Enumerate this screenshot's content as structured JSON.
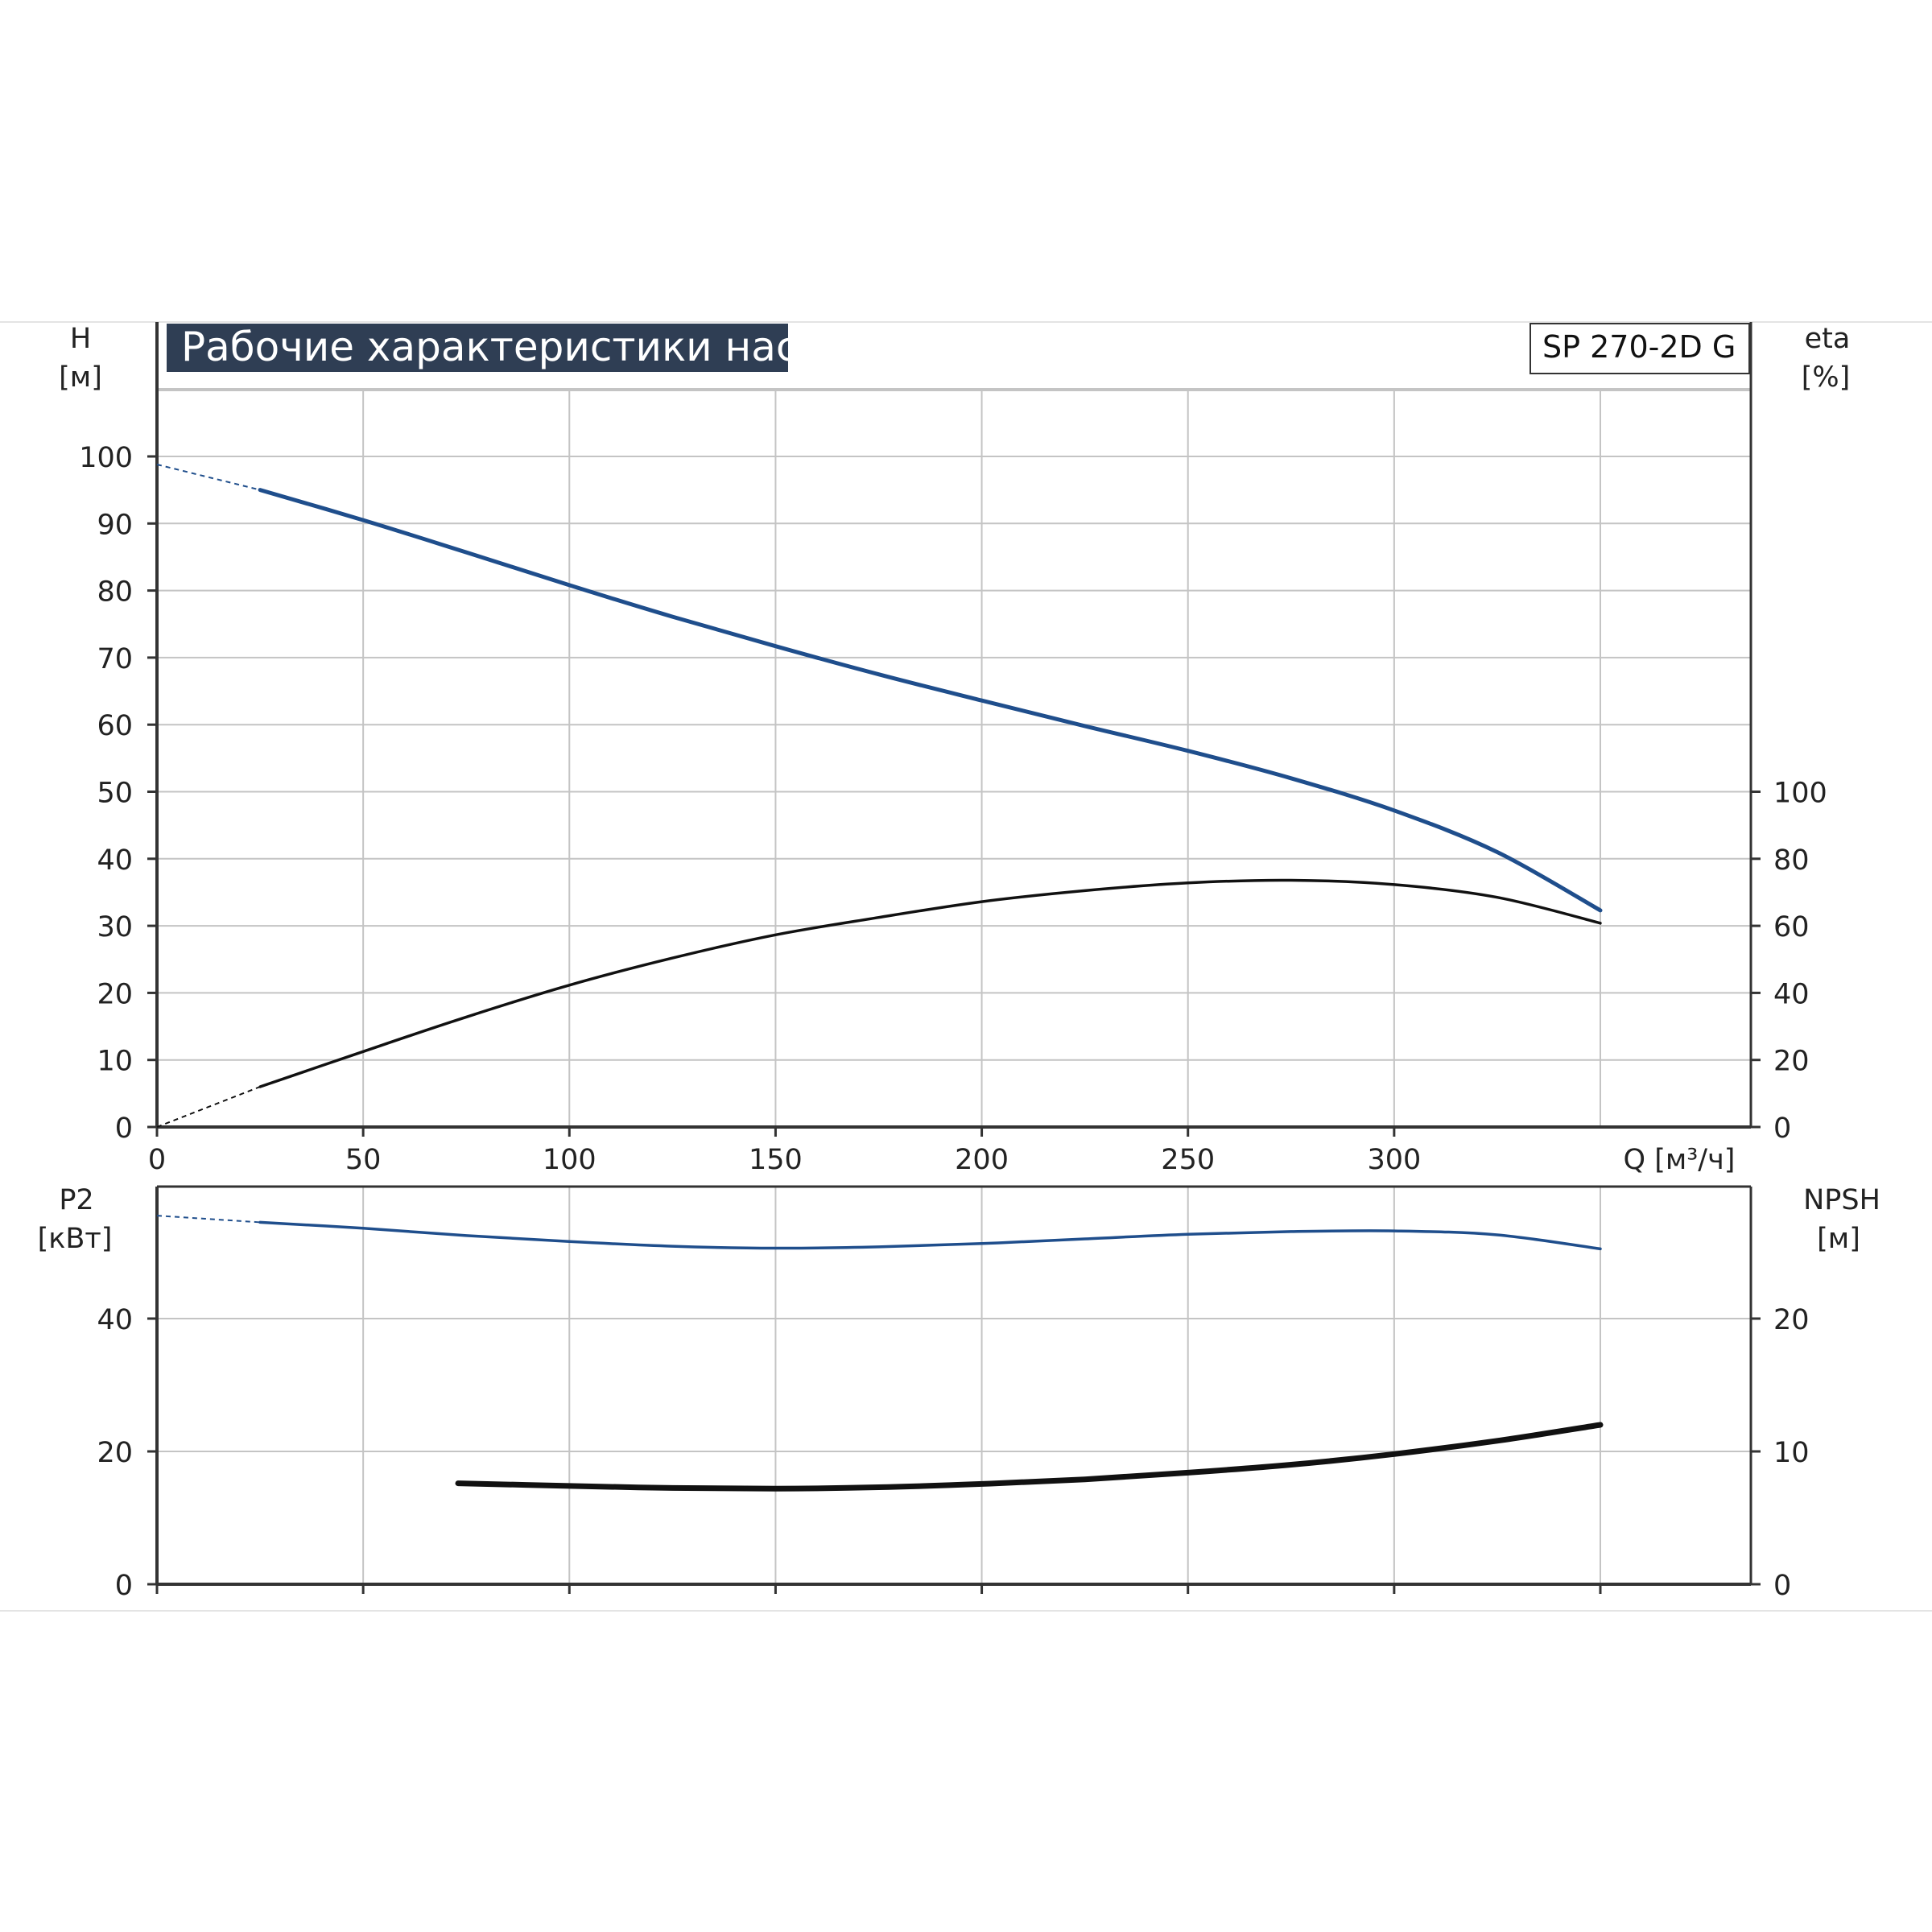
{
  "colors": {
    "blue_curve": "#1f4e8c",
    "black_curve": "#111111",
    "grid": "#c4c4c4",
    "axis": "#333333",
    "title_bg": "#2f3e54",
    "title_fg": "#ffffff"
  },
  "chart_data": [
    {
      "type": "line",
      "title": "Рабочие характеристики насоса",
      "model": "SP 270-2D G",
      "xlabel": "Q [м³/ч]",
      "xlim": [
        0,
        385
      ],
      "xticks": [
        0,
        50,
        100,
        150,
        200,
        250,
        300
      ],
      "xtick_labels": [
        "0",
        "50",
        "100",
        "150",
        "200",
        "250",
        "300"
      ],
      "grid": true,
      "y_left": {
        "label_line1": "H",
        "label_line2": "[м]",
        "lim": [
          0,
          120
        ],
        "ticks": [
          0,
          10,
          20,
          30,
          40,
          50,
          60,
          70,
          80,
          90,
          100
        ],
        "tick_labels": [
          "0",
          "10",
          "20",
          "30",
          "40",
          "50",
          "60",
          "70",
          "80",
          "90",
          "100"
        ]
      },
      "y_right": {
        "label_line1": "eta",
        "label_line2": "[%]",
        "lim": [
          0,
          240
        ],
        "ticks": [
          0,
          20,
          40,
          60,
          80,
          100
        ],
        "tick_labels": [
          "0",
          "20",
          "40",
          "60",
          "80",
          "100"
        ]
      },
      "series": [
        {
          "axis": "left",
          "color": "#1f4e8c",
          "width": 5,
          "extrapolated": [
            [
              0,
              98.8
            ],
            [
              25,
              95
            ]
          ],
          "points": [
            [
              25,
              95
            ],
            [
              50,
              90.5
            ],
            [
              75,
              85.7
            ],
            [
              100,
              80.8
            ],
            [
              125,
              76.1
            ],
            [
              150,
              71.7
            ],
            [
              175,
              67.5
            ],
            [
              200,
              63.6
            ],
            [
              225,
              59.8
            ],
            [
              250,
              56.1
            ],
            [
              275,
              52
            ],
            [
              300,
              47.2
            ],
            [
              325,
              41
            ],
            [
              350,
              32.3
            ]
          ]
        },
        {
          "axis": "right",
          "color": "#111111",
          "width": 3.5,
          "extrapolated": [
            [
              0,
              0
            ],
            [
              25,
              12
            ]
          ],
          "points": [
            [
              25,
              12
            ],
            [
              50,
              22.5
            ],
            [
              75,
              32.8
            ],
            [
              100,
              42.3
            ],
            [
              125,
              50.4
            ],
            [
              150,
              57.3
            ],
            [
              175,
              62.5
            ],
            [
              200,
              67.2
            ],
            [
              225,
              70.5
            ],
            [
              250,
              72.8
            ],
            [
              275,
              73.6
            ],
            [
              300,
              72.3
            ],
            [
              325,
              68.5
            ],
            [
              350,
              60.8
            ]
          ]
        }
      ]
    },
    {
      "type": "line",
      "xlim": [
        0,
        385
      ],
      "xticks": [
        0,
        50,
        100,
        150,
        200,
        250,
        300,
        350
      ],
      "grid": true,
      "y_left": {
        "label_line1": "P2",
        "label_line2": "[кВт]",
        "lim": [
          0,
          60
        ],
        "ticks": [
          0,
          20,
          40
        ],
        "tick_labels": [
          "0",
          "20",
          "40"
        ]
      },
      "y_right": {
        "label_line1": "NPSH",
        "label_line2": "[м]",
        "lim": [
          0,
          30
        ],
        "ticks": [
          0,
          10,
          20
        ],
        "tick_labels": [
          "0",
          "10",
          "20"
        ]
      },
      "series": [
        {
          "axis": "left",
          "color": "#1f4e8c",
          "width": 3.5,
          "extrapolated": [
            [
              0,
              55.5
            ],
            [
              25,
              54.5
            ]
          ],
          "points": [
            [
              25,
              54.5
            ],
            [
              50,
              53.6
            ],
            [
              75,
              52.5
            ],
            [
              100,
              51.6
            ],
            [
              125,
              50.9
            ],
            [
              150,
              50.6
            ],
            [
              175,
              50.8
            ],
            [
              200,
              51.3
            ],
            [
              225,
              52
            ],
            [
              250,
              52.7
            ],
            [
              275,
              53.1
            ],
            [
              300,
              53.2
            ],
            [
              325,
              52.6
            ],
            [
              350,
              50.5
            ]
          ]
        },
        {
          "axis": "right",
          "color": "#111111",
          "width": 7,
          "points": [
            [
              73,
              7.6
            ],
            [
              100,
              7.4
            ],
            [
              125,
              7.25
            ],
            [
              150,
              7.2
            ],
            [
              175,
              7.3
            ],
            [
              200,
              7.55
            ],
            [
              225,
              7.9
            ],
            [
              250,
              8.4
            ],
            [
              275,
              9
            ],
            [
              300,
              9.8
            ],
            [
              325,
              10.8
            ],
            [
              350,
              12
            ]
          ]
        }
      ]
    }
  ]
}
